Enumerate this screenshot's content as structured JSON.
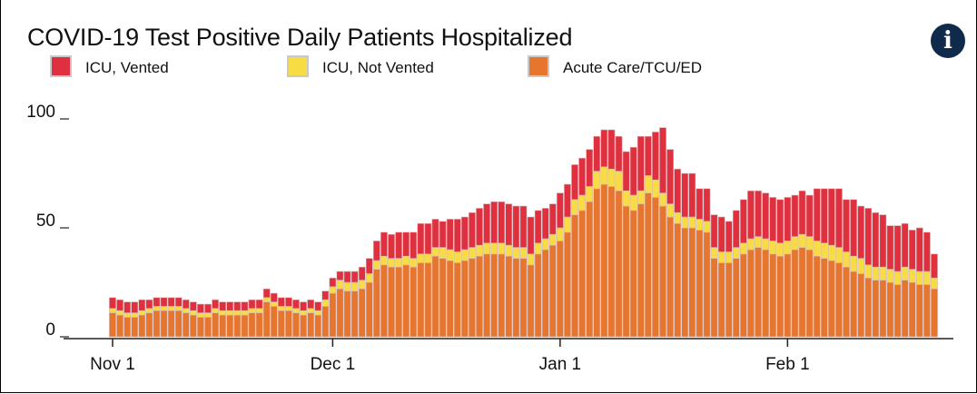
{
  "title": "COVID-19 Test Positive Daily Patients Hospitalized",
  "info_icon": "info-icon",
  "legend": [
    {
      "label": "ICU, Vented",
      "color": "#e0303f"
    },
    {
      "label": "ICU, Not Vented",
      "color": "#f8dc44"
    },
    {
      "label": "Acute Care/TCU/ED",
      "color": "#e6762e"
    }
  ],
  "chart_data": {
    "type": "bar",
    "stacked": true,
    "title": "COVID-19 Test Positive Daily Patients Hospitalized",
    "xlabel": "",
    "ylabel": "",
    "ylim": [
      0,
      100
    ],
    "y_ticks": [
      0,
      50,
      100
    ],
    "x_start": "2020-11-01",
    "x_ticks": [
      {
        "label": "Nov 1",
        "index": 0
      },
      {
        "label": "Dec 1",
        "index": 30
      },
      {
        "label": "Jan 1",
        "index": 61
      },
      {
        "label": "Feb 1",
        "index": 92
      }
    ],
    "series": [
      {
        "name": "Acute Care/TCU/ED",
        "color": "#e6762e",
        "values": [
          11,
          10,
          9,
          9,
          10,
          11,
          12,
          12,
          12,
          12,
          11,
          10,
          9,
          9,
          11,
          10,
          10,
          10,
          10,
          11,
          11,
          16,
          14,
          12,
          12,
          11,
          10,
          11,
          10,
          14,
          20,
          22,
          21,
          21,
          22,
          25,
          31,
          33,
          32,
          32,
          33,
          32,
          34,
          34,
          37,
          36,
          35,
          34,
          35,
          36,
          37,
          38,
          38,
          38,
          37,
          36,
          36,
          33,
          38,
          40,
          42,
          44,
          48,
          56,
          58,
          62,
          68,
          70,
          69,
          67,
          60,
          58,
          61,
          66,
          64,
          60,
          55,
          52,
          50,
          50,
          49,
          48,
          36,
          34,
          34,
          36,
          38,
          40,
          41,
          40,
          38,
          37,
          38,
          40,
          41,
          40,
          37,
          36,
          35,
          34,
          32,
          30,
          29,
          27,
          26,
          26,
          25,
          24,
          26,
          25,
          24,
          24,
          22
        ]
      },
      {
        "name": "ICU, Not Vented",
        "color": "#f8dc44",
        "values": [
          2,
          2,
          2,
          2,
          2,
          2,
          2,
          2,
          2,
          2,
          2,
          2,
          2,
          2,
          2,
          2,
          2,
          2,
          2,
          2,
          2,
          2,
          2,
          2,
          2,
          2,
          2,
          2,
          2,
          3,
          3,
          4,
          4,
          4,
          4,
          4,
          4,
          4,
          4,
          4,
          4,
          4,
          4,
          4,
          4,
          5,
          5,
          5,
          5,
          5,
          5,
          5,
          5,
          5,
          5,
          5,
          5,
          5,
          5,
          5,
          5,
          6,
          7,
          7,
          7,
          7,
          8,
          8,
          8,
          9,
          7,
          7,
          6,
          8,
          8,
          6,
          6,
          5,
          5,
          5,
          5,
          5,
          5,
          5,
          5,
          5,
          5,
          5,
          5,
          5,
          6,
          6,
          6,
          6,
          6,
          6,
          7,
          7,
          7,
          7,
          7,
          7,
          7,
          6,
          6,
          6,
          6,
          6,
          6,
          6,
          6,
          6,
          5
        ]
      },
      {
        "name": "ICU, Vented",
        "color": "#e0303f",
        "values": [
          5,
          5,
          5,
          5,
          5,
          4,
          4,
          4,
          4,
          4,
          4,
          4,
          4,
          4,
          4,
          4,
          4,
          4,
          4,
          4,
          4,
          4,
          4,
          4,
          4,
          4,
          4,
          4,
          4,
          4,
          4,
          4,
          5,
          5,
          6,
          7,
          9,
          11,
          11,
          12,
          11,
          12,
          14,
          14,
          13,
          12,
          14,
          15,
          15,
          16,
          17,
          18,
          19,
          19,
          19,
          19,
          19,
          17,
          15,
          14,
          14,
          16,
          15,
          16,
          17,
          17,
          16,
          17,
          18,
          16,
          18,
          22,
          25,
          18,
          22,
          30,
          25,
          20,
          20,
          20,
          14,
          15,
          15,
          16,
          14,
          17,
          20,
          22,
          21,
          21,
          20,
          20,
          20,
          19,
          20,
          19,
          24,
          25,
          26,
          27,
          24,
          26,
          24,
          26,
          25,
          24,
          20,
          21,
          20,
          18,
          20,
          18,
          11
        ]
      }
    ],
    "grid": false,
    "legend_position": "top-left"
  }
}
